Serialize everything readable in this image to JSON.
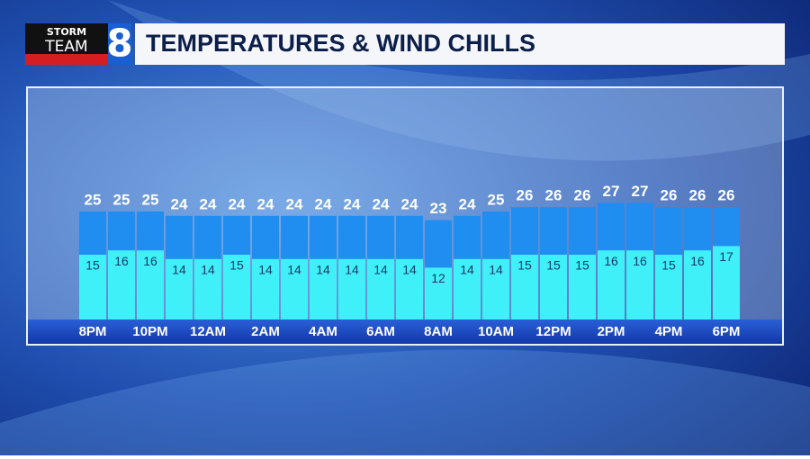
{
  "logo": {
    "line1": "STORM",
    "line2": "TEAM",
    "number": "8"
  },
  "chart_data": {
    "type": "bar",
    "title": "TEMPERATURES & WIND CHILLS",
    "categories": [
      "8PM",
      null,
      "10PM",
      null,
      "12AM",
      null,
      "2AM",
      null,
      "4AM",
      null,
      "6AM",
      null,
      "8AM",
      null,
      "10AM",
      null,
      "12PM",
      null,
      "2PM",
      null,
      "4PM",
      null,
      "6PM"
    ],
    "series": [
      {
        "color": "#1f8ef0",
        "values": [
          25,
          25,
          25,
          24,
          24,
          24,
          24,
          24,
          24,
          24,
          24,
          24,
          23,
          24,
          25,
          26,
          26,
          26,
          27,
          27,
          26,
          26,
          26
        ]
      },
      {
        "color": "#3ff0f8",
        "values": [
          15,
          16,
          16,
          14,
          14,
          15,
          14,
          14,
          14,
          14,
          14,
          14,
          12,
          14,
          14,
          15,
          15,
          15,
          16,
          16,
          15,
          16,
          17
        ]
      }
    ]
  }
}
